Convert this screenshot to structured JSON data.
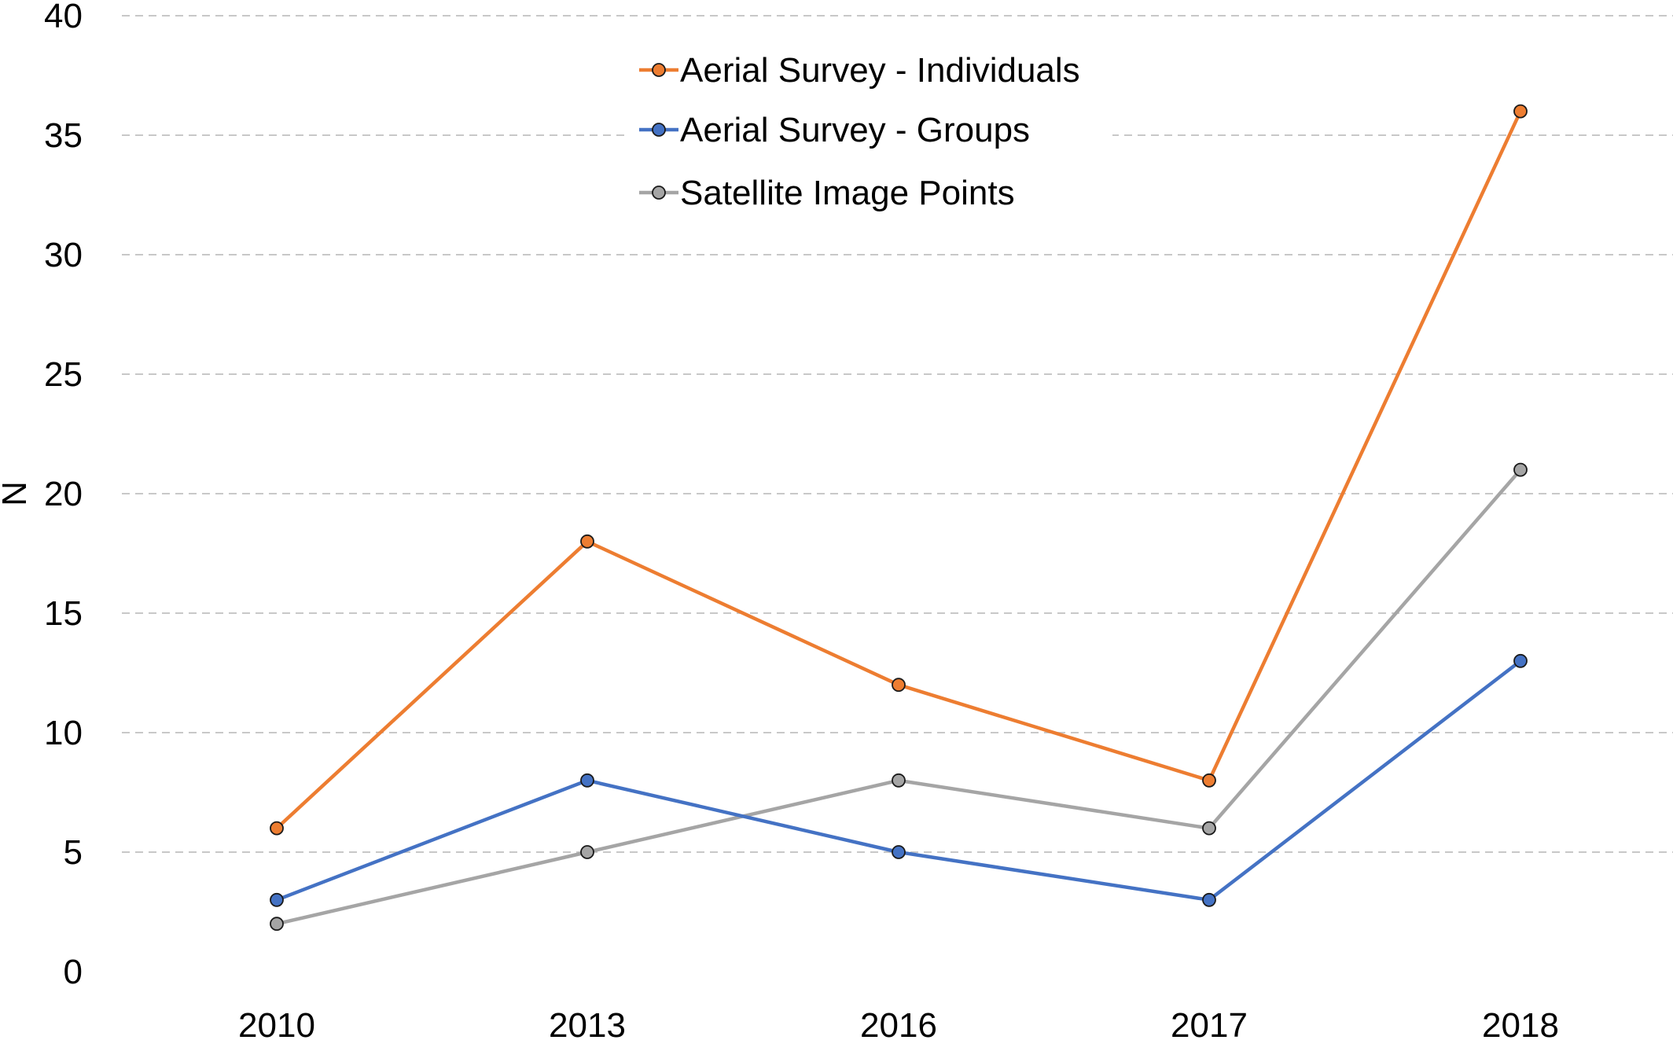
{
  "chart_data": {
    "type": "line",
    "title": "",
    "xlabel": "",
    "ylabel": "N",
    "categories": [
      "2010",
      "2013",
      "2016",
      "2017",
      "2018"
    ],
    "ylim": [
      0,
      40
    ],
    "yticks": [
      "0",
      "5",
      "10",
      "15",
      "20",
      "25",
      "30",
      "35",
      "40"
    ],
    "grid": true,
    "legend_position": "top-center",
    "series": [
      {
        "name": "Aerial Survey - Individuals",
        "color": "#ED7D31",
        "values": [
          6,
          18,
          12,
          8,
          36
        ]
      },
      {
        "name": "Aerial Survey - Groups",
        "color": "#4472C4",
        "values": [
          3,
          8,
          5,
          3,
          13
        ]
      },
      {
        "name": "Satellite Image Points",
        "color": "#A5A5A5",
        "values": [
          2,
          5,
          8,
          6,
          21
        ]
      }
    ]
  }
}
